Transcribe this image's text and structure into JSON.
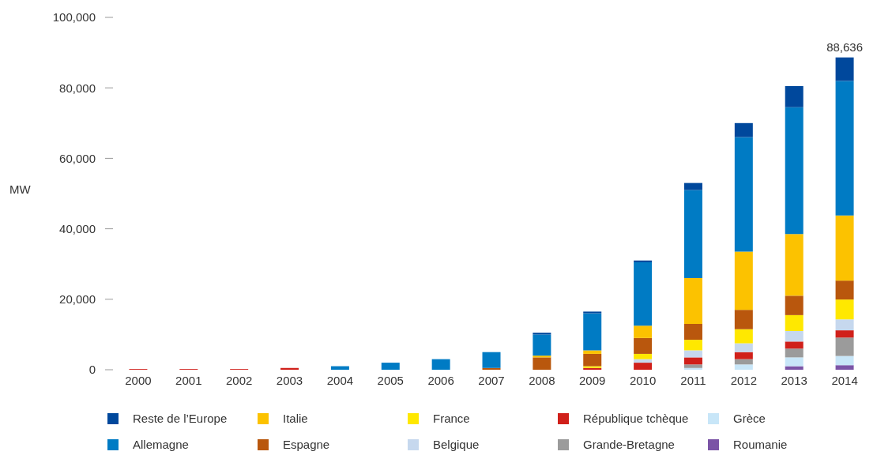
{
  "chart_data": {
    "type": "bar",
    "stacked": true,
    "ylabel": "MW",
    "categories": [
      "2000",
      "2001",
      "2002",
      "2003",
      "2004",
      "2005",
      "2006",
      "2007",
      "2008",
      "2009",
      "2010",
      "2011",
      "2012",
      "2013",
      "2014"
    ],
    "series": [
      {
        "name": "Roumanie",
        "color": "#7b54a6",
        "values": [
          0,
          0,
          0,
          0,
          0,
          0,
          0,
          0,
          0,
          0,
          0,
          0,
          0,
          1000,
          1293
        ]
      },
      {
        "name": "Grèce",
        "color": "#c8e6f8",
        "values": [
          0,
          0,
          0,
          0,
          0,
          0,
          0,
          0,
          0,
          0,
          0,
          500,
          1500,
          2500,
          2603
        ]
      },
      {
        "name": "Grande-Bretagne",
        "color": "#9b9b9b",
        "values": [
          0,
          0,
          0,
          0,
          0,
          0,
          0,
          0,
          0,
          0,
          0,
          1000,
          1500,
          2500,
          5230
        ]
      },
      {
        "name": "République tchèque",
        "color": "#d0201a",
        "values": [
          200,
          200,
          200,
          500,
          0,
          0,
          0,
          0,
          0,
          500,
          2000,
          2000,
          2000,
          2000,
          2061
        ]
      },
      {
        "name": "Belgique",
        "color": "#c6d8ee",
        "values": [
          0,
          0,
          0,
          0,
          0,
          0,
          0,
          0,
          0,
          0,
          1000,
          2000,
          2500,
          3000,
          3105
        ]
      },
      {
        "name": "France",
        "color": "#ffe800",
        "values": [
          0,
          0,
          0,
          0,
          0,
          0,
          0,
          0,
          0,
          500,
          1500,
          3000,
          4000,
          4500,
          5632
        ]
      },
      {
        "name": "Espagne",
        "color": "#b9570d",
        "values": [
          0,
          0,
          0,
          0,
          0,
          0,
          0,
          500,
          3500,
          3500,
          4500,
          4500,
          5500,
          5500,
          5376
        ]
      },
      {
        "name": "Italie",
        "color": "#fcc200",
        "values": [
          0,
          0,
          0,
          0,
          0,
          0,
          0,
          0,
          500,
          1000,
          3500,
          13000,
          16500,
          17500,
          18460
        ]
      },
      {
        "name": "Allemagne",
        "color": "#007bc4",
        "values": [
          0,
          0,
          0,
          0,
          1000,
          2000,
          3000,
          4500,
          6000,
          10500,
          18000,
          25000,
          32500,
          36000,
          38200
        ]
      },
      {
        "name": "Reste de l’Europe",
        "color": "#00489c",
        "values": [
          0,
          0,
          0,
          0,
          0,
          0,
          0,
          0,
          500,
          500,
          500,
          2000,
          4000,
          6000,
          6676
        ]
      }
    ],
    "totals": [
      null,
      null,
      null,
      null,
      null,
      null,
      null,
      null,
      null,
      null,
      null,
      null,
      null,
      null,
      "88,636"
    ],
    "ylim": [
      0,
      100000
    ],
    "yticks": [
      {
        "value": 0,
        "label": "0"
      },
      {
        "value": 20000,
        "label": "20,000"
      },
      {
        "value": 40000,
        "label": "40,000"
      },
      {
        "value": 60000,
        "label": "60,000"
      },
      {
        "value": 80000,
        "label": "80,000"
      },
      {
        "value": 100000,
        "label": "100,000"
      }
    ],
    "grid": false,
    "legend": "bottom"
  }
}
